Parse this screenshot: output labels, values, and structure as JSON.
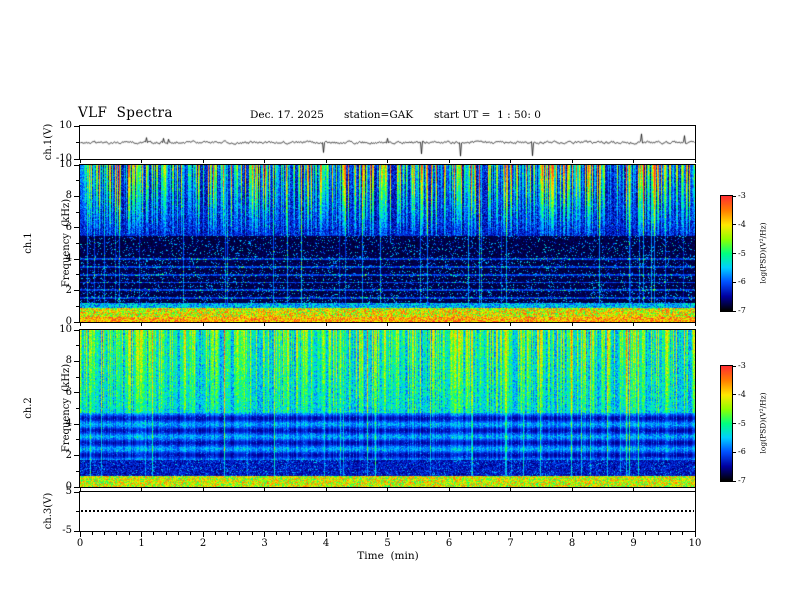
{
  "header": {
    "title": "VLF  Spectra",
    "date": "Dec. 17. 2025",
    "station": "station=GAK",
    "start_ut": "start UT =  1 : 50: 0"
  },
  "xaxis": {
    "label": "Time  (min)",
    "range": [
      0,
      10
    ],
    "ticks": [
      0,
      1,
      2,
      3,
      4,
      5,
      6,
      7,
      8,
      9,
      10
    ]
  },
  "chart_data": [
    {
      "id": "ch1-waveform",
      "type": "line",
      "ylabel": "ch.1(V)",
      "ylim": [
        -10,
        10
      ],
      "yticks": [
        10,
        -10
      ],
      "xlim": [
        0,
        10
      ],
      "line_color": "#000000",
      "series": [
        {
          "name": "ch.1 voltage",
          "description": "broadband noise centered near 0 V with sporadic impulsive spikes down to about -9 V"
        }
      ]
    },
    {
      "id": "ch1-spectrogram",
      "type": "heatmap",
      "ylabel_line1": "ch.1",
      "ylabel_line2": "Frequency  (kHz)",
      "ylim": [
        0,
        10
      ],
      "yticks": [
        0,
        2,
        4,
        6,
        8,
        10
      ],
      "xlim": [
        0,
        10
      ],
      "zlabel": "log(PSD)(V²/Hz)",
      "zlim": [
        -7,
        -3
      ],
      "zticks": [
        -3,
        -4,
        -5,
        -6,
        -7
      ],
      "colormap": [
        "#000000",
        "#0000a0",
        "#0050ff",
        "#00d0ff",
        "#00ff80",
        "#90ff00",
        "#ffe800",
        "#ff8000",
        "#ff3030"
      ],
      "content": "intense multicolor band below ~1 kHz; dark (~ -7) background 1-5.5 kHz with blue/cyan speckle and faint horizontal lines; dense vertical sferic streaks 5.5-10 kHz in cyan/green/yellow with occasional red"
    },
    {
      "id": "ch2-spectrogram",
      "type": "heatmap",
      "ylabel_line1": "ch.2",
      "ylabel_line2": "Frequency  (kHz)",
      "ylim": [
        0,
        10
      ],
      "yticks": [
        0,
        2,
        4,
        6,
        8,
        10
      ],
      "xlim": [
        0,
        10
      ],
      "zlabel": "log(PSD)(V²/Hz)",
      "zlim": [
        -7,
        -3
      ],
      "zticks": [
        -3,
        -4,
        -5,
        -6,
        -7
      ],
      "colormap": [
        "#000000",
        "#0000a0",
        "#0050ff",
        "#00d0ff",
        "#00ff80",
        "#90ff00",
        "#ffe800",
        "#ff8000",
        "#ff3030"
      ],
      "content": "bright band below ~0.7 kHz; dark gap 0.7-1.7 kHz; cyan horizontal banding 1.7-4.7 kHz; dense green/yellow streaks with red bursts 4.7-10 kHz"
    },
    {
      "id": "ch3-trace",
      "type": "line",
      "ylabel": "ch.3(V)",
      "ylim": [
        -5,
        5
      ],
      "yticks": [
        5,
        -5
      ],
      "xlim": [
        0,
        10
      ],
      "series": [
        {
          "name": "ch.3 voltage",
          "value": 0,
          "description": "flat dotted trace at 0 V"
        }
      ]
    }
  ]
}
